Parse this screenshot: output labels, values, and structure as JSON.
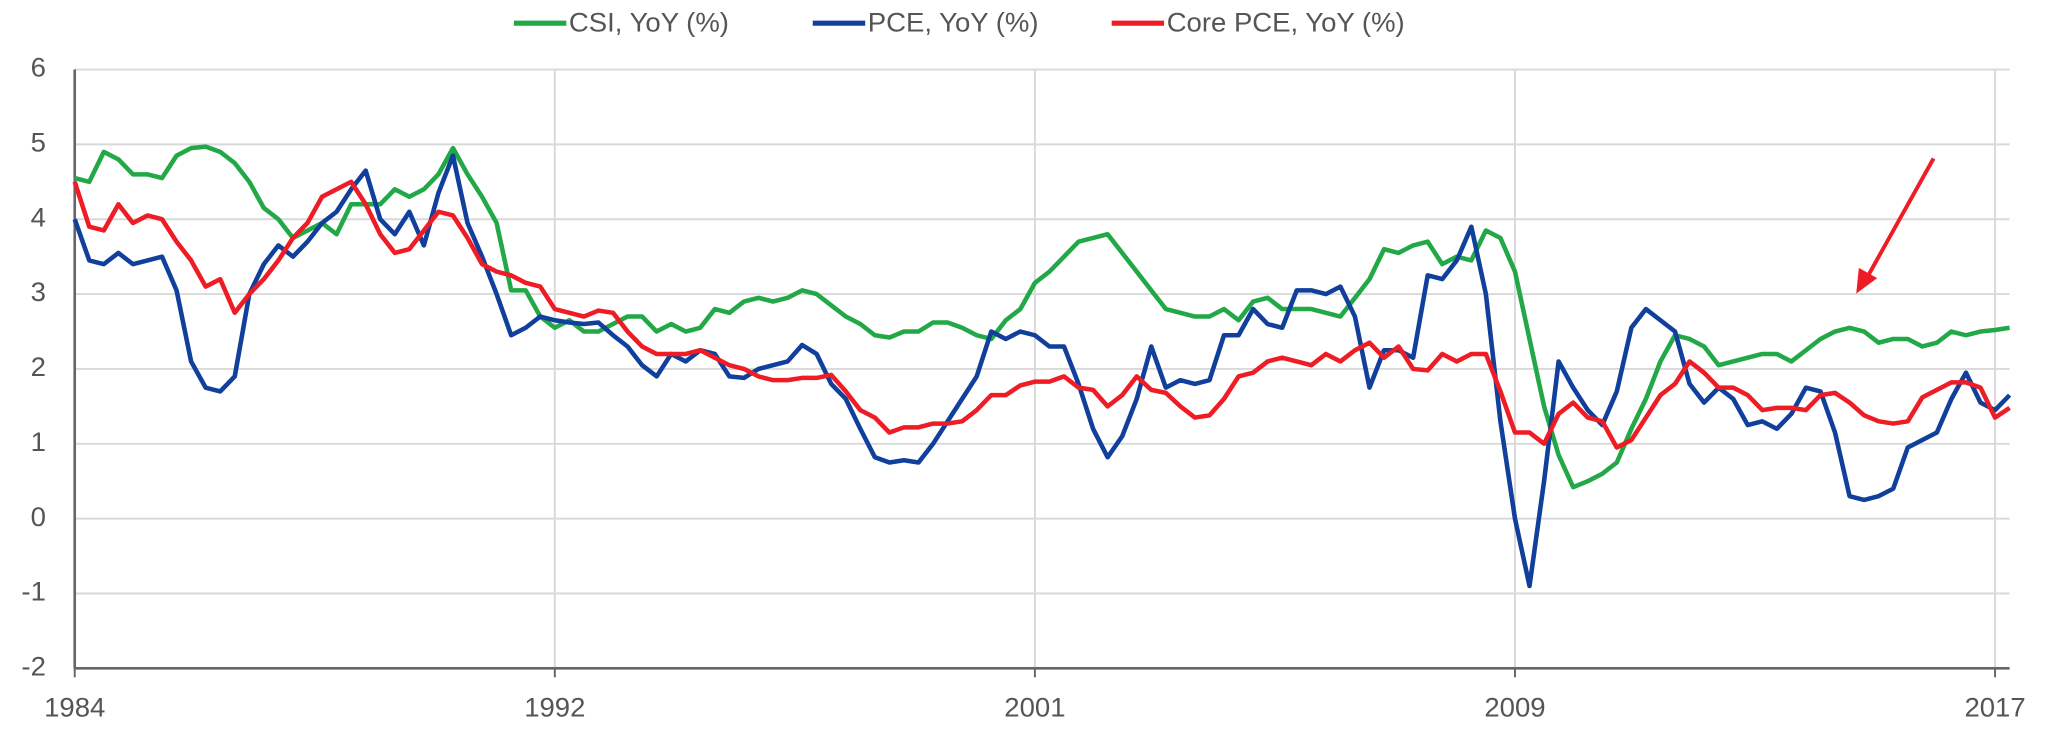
{
  "chart_data": {
    "type": "line",
    "x": [
      1984,
      1984.25,
      1984.5,
      1984.75,
      1985,
      1985.25,
      1985.5,
      1985.75,
      1986,
      1986.25,
      1986.5,
      1986.75,
      1987,
      1987.25,
      1987.5,
      1987.75,
      1988,
      1988.25,
      1988.5,
      1988.75,
      1989,
      1989.25,
      1989.5,
      1989.75,
      1990,
      1990.25,
      1990.5,
      1990.75,
      1991,
      1991.25,
      1991.5,
      1991.75,
      1992,
      1992.25,
      1992.5,
      1992.75,
      1993,
      1993.25,
      1993.5,
      1993.75,
      1994,
      1994.25,
      1994.5,
      1994.75,
      1995,
      1995.25,
      1995.5,
      1995.75,
      1996,
      1996.25,
      1996.5,
      1996.75,
      1997,
      1997.25,
      1997.5,
      1997.75,
      1998,
      1998.25,
      1998.5,
      1998.75,
      1999,
      1999.25,
      1999.5,
      1999.75,
      2000,
      2000.25,
      2000.5,
      2000.75,
      2001,
      2001.25,
      2001.5,
      2001.75,
      2002,
      2002.25,
      2002.5,
      2002.75,
      2003,
      2003.25,
      2003.5,
      2003.75,
      2004,
      2004.25,
      2004.5,
      2004.75,
      2005,
      2005.25,
      2005.5,
      2005.75,
      2006,
      2006.25,
      2006.5,
      2006.75,
      2007,
      2007.25,
      2007.5,
      2007.75,
      2008,
      2008.25,
      2008.5,
      2008.75,
      2009,
      2009.25,
      2009.5,
      2009.75,
      2010,
      2010.25,
      2010.5,
      2010.75,
      2011,
      2011.25,
      2011.5,
      2011.75,
      2012,
      2012.25,
      2012.5,
      2012.75,
      2013,
      2013.25,
      2013.5,
      2013.75,
      2014,
      2014.25,
      2014.5,
      2014.75,
      2015,
      2015.25,
      2015.5,
      2015.75,
      2016,
      2016.25,
      2016.5,
      2016.75,
      2017,
      2017.25
    ],
    "series": [
      {
        "name": "CSI, YoY (%)",
        "color": "#22a846",
        "values": [
          4.55,
          4.5,
          4.9,
          4.8,
          4.6,
          4.6,
          4.55,
          4.85,
          4.95,
          4.97,
          4.9,
          4.75,
          4.5,
          4.15,
          4.0,
          3.75,
          3.85,
          3.95,
          3.8,
          4.2,
          4.2,
          4.2,
          4.4,
          4.3,
          4.4,
          4.6,
          4.95,
          4.6,
          4.3,
          3.95,
          3.05,
          3.05,
          2.7,
          2.55,
          2.65,
          2.5,
          2.5,
          2.6,
          2.7,
          2.7,
          2.5,
          2.6,
          2.5,
          2.55,
          2.8,
          2.75,
          2.9,
          2.95,
          2.9,
          2.95,
          3.05,
          3.0,
          2.85,
          2.7,
          2.6,
          2.45,
          2.42,
          2.5,
          2.5,
          2.62,
          2.62,
          2.55,
          2.45,
          2.4,
          2.65,
          2.8,
          3.15,
          3.3,
          3.5,
          3.7,
          3.75,
          3.8,
          3.55,
          3.3,
          3.05,
          2.8,
          2.75,
          2.7,
          2.7,
          2.8,
          2.65,
          2.9,
          2.95,
          2.8,
          2.8,
          2.8,
          2.75,
          2.7,
          2.95,
          3.2,
          3.6,
          3.55,
          3.65,
          3.7,
          3.4,
          3.5,
          3.45,
          3.85,
          3.75,
          3.3,
          2.4,
          1.5,
          0.85,
          0.42,
          0.5,
          0.6,
          0.75,
          1.2,
          1.6,
          2.1,
          2.45,
          2.4,
          2.3,
          2.05,
          2.1,
          2.15,
          2.2,
          2.2,
          2.1,
          2.25,
          2.4,
          2.5,
          2.55,
          2.5,
          2.35,
          2.4,
          2.4,
          2.3,
          2.35,
          2.5,
          2.45,
          2.5,
          2.52,
          2.55
        ]
      },
      {
        "name": "PCE, YoY (%)",
        "color": "#103f9c",
        "values": [
          4.0,
          3.45,
          3.4,
          3.55,
          3.4,
          3.45,
          3.5,
          3.05,
          2.1,
          1.75,
          1.7,
          1.9,
          3.0,
          3.4,
          3.65,
          3.5,
          3.7,
          3.95,
          4.1,
          4.4,
          4.65,
          4.0,
          3.8,
          4.1,
          3.65,
          4.35,
          4.85,
          3.95,
          3.5,
          3.0,
          2.45,
          2.55,
          2.7,
          2.65,
          2.62,
          2.6,
          2.62,
          2.45,
          2.3,
          2.05,
          1.9,
          2.2,
          2.1,
          2.25,
          2.2,
          1.9,
          1.88,
          2.0,
          2.05,
          2.1,
          2.32,
          2.2,
          1.8,
          1.6,
          1.2,
          0.82,
          0.75,
          0.78,
          0.75,
          1.0,
          1.3,
          1.6,
          1.9,
          2.5,
          2.4,
          2.5,
          2.45,
          2.3,
          2.3,
          1.8,
          1.2,
          0.82,
          1.1,
          1.6,
          2.3,
          1.75,
          1.85,
          1.8,
          1.85,
          2.45,
          2.45,
          2.8,
          2.6,
          2.55,
          3.05,
          3.05,
          3.0,
          3.1,
          2.7,
          1.75,
          2.25,
          2.25,
          2.15,
          3.25,
          3.2,
          3.45,
          3.9,
          3.0,
          1.3,
          0.0,
          -0.9,
          0.5,
          2.1,
          1.75,
          1.45,
          1.25,
          1.7,
          2.55,
          2.8,
          2.65,
          2.5,
          1.8,
          1.55,
          1.75,
          1.6,
          1.25,
          1.3,
          1.2,
          1.4,
          1.75,
          1.7,
          1.15,
          0.3,
          0.25,
          0.3,
          0.4,
          0.95,
          1.05,
          1.15,
          1.6,
          1.95,
          1.55,
          1.45,
          1.65
        ]
      },
      {
        "name": "Core PCE, YoY (%)",
        "color": "#ee1c25",
        "values": [
          4.5,
          3.9,
          3.85,
          4.2,
          3.95,
          4.05,
          4.0,
          3.7,
          3.45,
          3.1,
          3.2,
          2.75,
          3.0,
          3.2,
          3.45,
          3.75,
          3.95,
          4.3,
          4.4,
          4.5,
          4.2,
          3.8,
          3.55,
          3.6,
          3.85,
          4.1,
          4.05,
          3.75,
          3.4,
          3.3,
          3.25,
          3.15,
          3.1,
          2.8,
          2.75,
          2.7,
          2.78,
          2.75,
          2.5,
          2.3,
          2.2,
          2.2,
          2.2,
          2.25,
          2.15,
          2.05,
          2.0,
          1.9,
          1.85,
          1.85,
          1.88,
          1.88,
          1.92,
          1.7,
          1.45,
          1.35,
          1.15,
          1.22,
          1.22,
          1.27,
          1.27,
          1.3,
          1.45,
          1.65,
          1.65,
          1.78,
          1.83,
          1.83,
          1.9,
          1.75,
          1.72,
          1.5,
          1.65,
          1.9,
          1.72,
          1.68,
          1.5,
          1.35,
          1.38,
          1.6,
          1.9,
          1.95,
          2.1,
          2.15,
          2.1,
          2.05,
          2.2,
          2.1,
          2.25,
          2.35,
          2.15,
          2.3,
          2.0,
          1.98,
          2.2,
          2.1,
          2.2,
          2.2,
          1.7,
          1.15,
          1.15,
          1.0,
          1.4,
          1.55,
          1.35,
          1.3,
          0.95,
          1.05,
          1.35,
          1.65,
          1.8,
          2.1,
          1.95,
          1.75,
          1.75,
          1.65,
          1.45,
          1.48,
          1.48,
          1.45,
          1.65,
          1.68,
          1.55,
          1.38,
          1.3,
          1.27,
          1.3,
          1.62,
          1.72,
          1.82,
          1.82,
          1.75,
          1.35,
          1.48
        ]
      }
    ],
    "xlim": [
      1984,
      2017.25
    ],
    "xticks": [
      1984,
      {
        "value": 1992.25,
        "label": "1992"
      },
      {
        "value": 2000.5,
        "label": "2001"
      },
      {
        "value": 2008.75,
        "label": "2009"
      },
      2017
    ],
    "ylim": [
      -2,
      6
    ],
    "yticks": [
      -2,
      -1,
      0,
      1,
      2,
      3,
      4,
      5,
      6
    ],
    "grid": true
  }
}
